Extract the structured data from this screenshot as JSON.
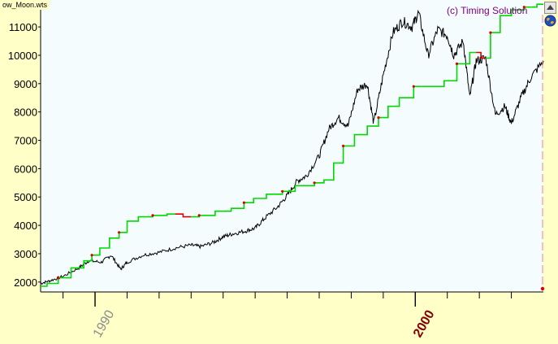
{
  "window": {
    "tab_label": "ow_Moon.wts"
  },
  "watermark": "(c) Timing Solution",
  "controls": {
    "scroll_up_icon": "triangle-up-icon",
    "globe_icon": "globe-icon"
  },
  "colors": {
    "background": "#ffffc8",
    "plot_background": "#f4fcfe",
    "price_line": "#000000",
    "projection_up": "#00d800",
    "projection_down": "#dd0000",
    "watermark": "#800080",
    "highlight_year": "#800000",
    "cursor_line": "#ff8080"
  },
  "chart_data": {
    "type": "line",
    "title": "",
    "xlabel": "",
    "ylabel": "",
    "xlim": [
      1988.3,
      2004.0
    ],
    "ylim": [
      1650,
      11950
    ],
    "y_ticks": [
      2000,
      3000,
      4000,
      5000,
      6000,
      7000,
      8000,
      9000,
      10000,
      11000
    ],
    "x_tick_labels": [
      {
        "value": 1990,
        "label": "1990",
        "highlight": false
      },
      {
        "value": 2000,
        "label": "2000",
        "highlight": true
      }
    ],
    "minor_ticks_years": [
      1989,
      1991,
      1992,
      1993,
      1994,
      1995,
      1996,
      1997,
      1998,
      1999,
      2001,
      2002,
      2003
    ],
    "grid": false,
    "series": [
      {
        "style": "black-line",
        "points": [
          [
            1988.3,
            1950
          ],
          [
            1988.6,
            2050
          ],
          [
            1989.0,
            2200
          ],
          [
            1989.5,
            2500
          ],
          [
            1989.8,
            2750
          ],
          [
            1990.2,
            2700
          ],
          [
            1990.5,
            2950
          ],
          [
            1990.8,
            2450
          ],
          [
            1991.0,
            2700
          ],
          [
            1991.5,
            2950
          ],
          [
            1992.0,
            3050
          ],
          [
            1992.5,
            3200
          ],
          [
            1993.0,
            3300
          ],
          [
            1993.3,
            3250
          ],
          [
            1993.7,
            3400
          ],
          [
            1994.0,
            3600
          ],
          [
            1994.3,
            3700
          ],
          [
            1994.7,
            3800
          ],
          [
            1995.0,
            3900
          ],
          [
            1995.3,
            4250
          ],
          [
            1995.7,
            4650
          ],
          [
            1996.0,
            5050
          ],
          [
            1996.3,
            5550
          ],
          [
            1996.6,
            5750
          ],
          [
            1997.0,
            6450
          ],
          [
            1997.3,
            7400
          ],
          [
            1997.6,
            7800
          ],
          [
            1997.9,
            7500
          ],
          [
            1998.2,
            8800
          ],
          [
            1998.5,
            9000
          ],
          [
            1998.7,
            7600
          ],
          [
            1999.0,
            9300
          ],
          [
            1999.3,
            10800
          ],
          [
            1999.6,
            11200
          ],
          [
            1999.9,
            11000
          ],
          [
            2000.1,
            11500
          ],
          [
            2000.4,
            10000
          ],
          [
            2000.7,
            10900
          ],
          [
            2001.0,
            10700
          ],
          [
            2001.2,
            10000
          ],
          [
            2001.5,
            10500
          ],
          [
            2001.7,
            8500
          ],
          [
            2001.9,
            9800
          ],
          [
            2002.2,
            9900
          ],
          [
            2002.5,
            7900
          ],
          [
            2002.8,
            8200
          ],
          [
            2003.0,
            7600
          ],
          [
            2003.3,
            8500
          ],
          [
            2003.6,
            9200
          ],
          [
            2004.0,
            9800
          ]
        ]
      },
      {
        "style": "green-red-projection",
        "points": [
          [
            1988.3,
            1850
          ],
          [
            1988.7,
            1950
          ],
          [
            1989.0,
            2150
          ],
          [
            1989.5,
            2500
          ],
          [
            1989.8,
            2750
          ],
          [
            1990.0,
            2950
          ],
          [
            1990.3,
            3200
          ],
          [
            1990.6,
            3550
          ],
          [
            1990.9,
            3750
          ],
          [
            1991.1,
            4150
          ],
          [
            1991.6,
            4300
          ],
          [
            1992.0,
            4350
          ],
          [
            1992.5,
            4400
          ],
          [
            1993.0,
            4300
          ],
          [
            1993.5,
            4350
          ],
          [
            1994.0,
            4500
          ],
          [
            1994.5,
            4600
          ],
          [
            1994.8,
            4800
          ],
          [
            1995.1,
            4950
          ],
          [
            1995.6,
            5100
          ],
          [
            1996.1,
            5200
          ],
          [
            1996.4,
            5400
          ],
          [
            1996.7,
            5400
          ],
          [
            1997.0,
            5500
          ],
          [
            1997.3,
            5600
          ],
          [
            1997.6,
            6200
          ],
          [
            1997.9,
            6800
          ],
          [
            1998.3,
            7200
          ],
          [
            1998.7,
            7500
          ],
          [
            1999.0,
            7800
          ],
          [
            1999.3,
            8200
          ],
          [
            1999.7,
            8500
          ],
          [
            2000.2,
            8900
          ],
          [
            2000.7,
            8900
          ],
          [
            2001.1,
            9100
          ],
          [
            2001.5,
            9700
          ],
          [
            2001.9,
            10100
          ],
          [
            2002.2,
            9900
          ],
          [
            2002.5,
            10800
          ],
          [
            2002.8,
            11400
          ],
          [
            2003.2,
            11600
          ],
          [
            2003.6,
            11700
          ],
          [
            2004.0,
            11800
          ]
        ]
      }
    ]
  }
}
